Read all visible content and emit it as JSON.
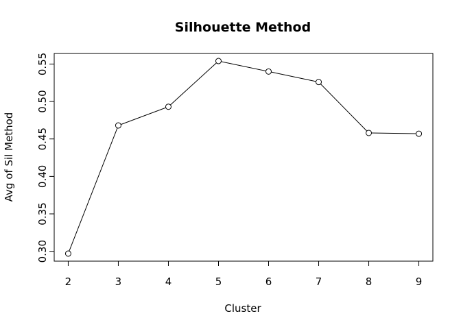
{
  "chart_data": {
    "type": "line",
    "title": "Silhouette Method",
    "xlabel": "Cluster",
    "ylabel": "Avg of Sil Method",
    "x": [
      2,
      3,
      4,
      5,
      6,
      7,
      8,
      9
    ],
    "values": [
      0.297,
      0.468,
      0.493,
      0.554,
      0.54,
      0.526,
      0.458,
      0.457
    ],
    "xticks": [
      "2",
      "3",
      "4",
      "5",
      "6",
      "7",
      "8",
      "9"
    ],
    "yticks": [
      "0.30",
      "0.35",
      "0.40",
      "0.45",
      "0.50",
      "0.55"
    ],
    "xlim": [
      1.72,
      9.28
    ],
    "ylim": [
      0.2869,
      0.5641
    ],
    "marker": "open-circle",
    "grid": false,
    "line_color": "#000000"
  }
}
